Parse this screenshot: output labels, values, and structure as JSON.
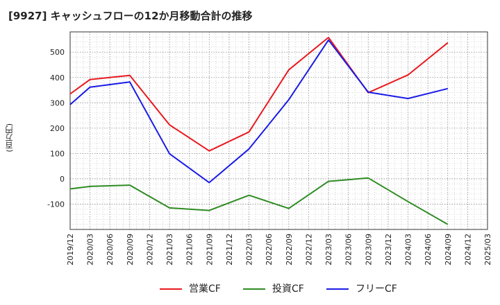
{
  "chart_data": {
    "type": "line",
    "title": "[9927]  キャッシュフローの12か月移動合計の推移",
    "ylabel": "(百万円)",
    "xlabel": "",
    "ylim": [
      -200,
      580
    ],
    "y_ticks": [
      -100,
      0,
      100,
      200,
      300,
      400,
      500
    ],
    "categories": [
      "2019/12",
      "2020/03",
      "2020/06",
      "2020/09",
      "2020/12",
      "2021/03",
      "2021/06",
      "2021/09",
      "2021/12",
      "2022/03",
      "2022/06",
      "2022/09",
      "2022/12",
      "2023/03",
      "2023/06",
      "2023/09",
      "2023/12",
      "2024/03",
      "2024/06",
      "2024/09",
      "2024/12",
      "2025/03"
    ],
    "series": [
      {
        "name": "営業CF",
        "color": "#e8191f",
        "points": [
          [
            "2019/12",
            335
          ],
          [
            "2020/03",
            392
          ],
          [
            "2020/09",
            408
          ],
          [
            "2021/03",
            213
          ],
          [
            "2021/09",
            110
          ],
          [
            "2022/03",
            185
          ],
          [
            "2022/09",
            430
          ],
          [
            "2023/03",
            558
          ],
          [
            "2023/09",
            340
          ],
          [
            "2024/03",
            410
          ],
          [
            "2024/09",
            537
          ]
        ]
      },
      {
        "name": "投資CF",
        "color": "#2e8b22",
        "points": [
          [
            "2019/12",
            -40
          ],
          [
            "2020/03",
            -30
          ],
          [
            "2020/09",
            -25
          ],
          [
            "2021/03",
            -115
          ],
          [
            "2021/09",
            -125
          ],
          [
            "2022/03",
            -65
          ],
          [
            "2022/09",
            -117
          ],
          [
            "2023/03",
            -10
          ],
          [
            "2023/09",
            3
          ],
          [
            "2024/03",
            -90
          ],
          [
            "2024/09",
            -180
          ]
        ]
      },
      {
        "name": "フリーCF",
        "color": "#1a1ae6",
        "points": [
          [
            "2019/12",
            293
          ],
          [
            "2020/03",
            362
          ],
          [
            "2020/09",
            382
          ],
          [
            "2021/03",
            99
          ],
          [
            "2021/09",
            -15
          ],
          [
            "2022/03",
            118
          ],
          [
            "2022/09",
            312
          ],
          [
            "2023/03",
            548
          ],
          [
            "2023/09",
            342
          ],
          [
            "2024/03",
            317
          ],
          [
            "2024/09",
            356
          ]
        ]
      }
    ]
  }
}
